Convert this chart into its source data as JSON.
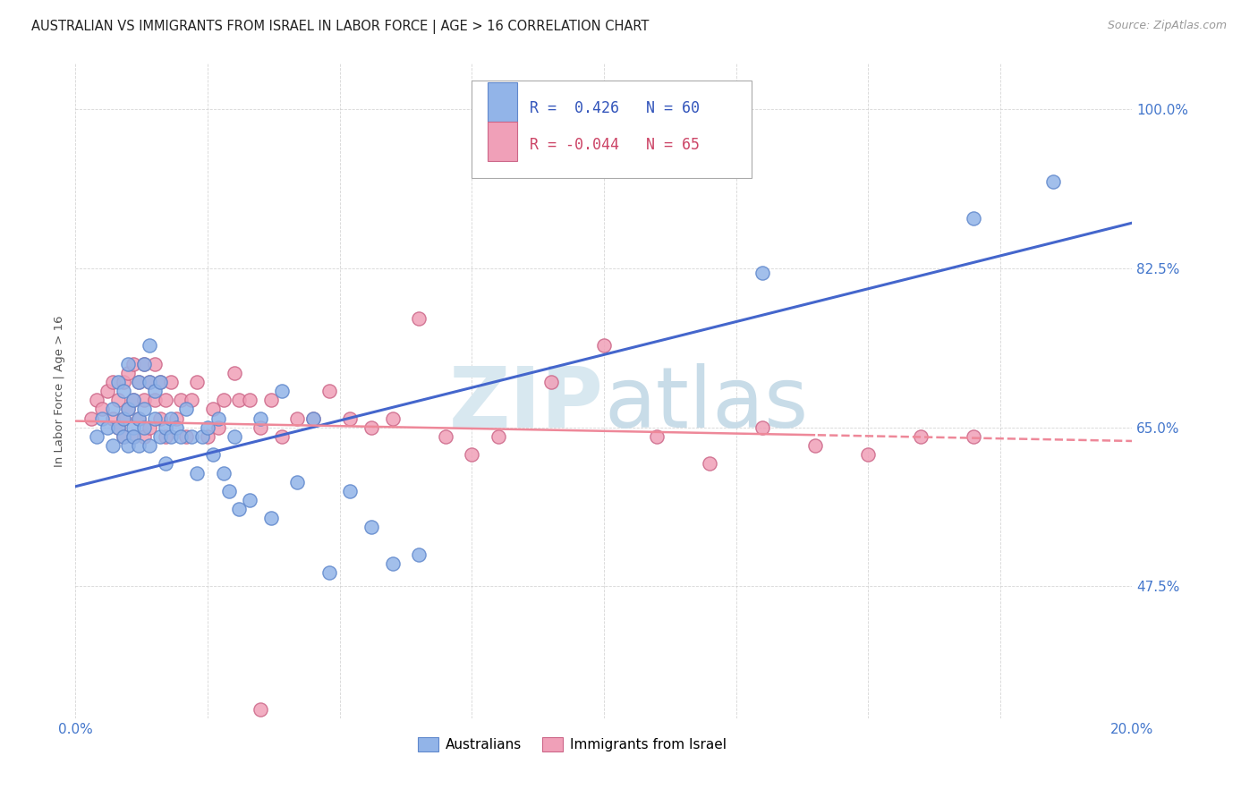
{
  "title": "AUSTRALIAN VS IMMIGRANTS FROM ISRAEL IN LABOR FORCE | AGE > 16 CORRELATION CHART",
  "source": "Source: ZipAtlas.com",
  "ylabel": "In Labor Force | Age > 16",
  "xlim": [
    0.0,
    0.2
  ],
  "ylim": [
    0.33,
    1.05
  ],
  "xtick_vals": [
    0.0,
    0.025,
    0.05,
    0.075,
    0.1,
    0.125,
    0.15,
    0.175,
    0.2
  ],
  "ytick_values": [
    0.475,
    0.65,
    0.825,
    1.0
  ],
  "ytick_labels": [
    "47.5%",
    "65.0%",
    "82.5%",
    "100.0%"
  ],
  "legend_blue_R": "0.426",
  "legend_blue_N": "60",
  "legend_pink_R": "-0.044",
  "legend_pink_N": "65",
  "blue_color": "#92b4e8",
  "blue_edge": "#6088cc",
  "pink_color": "#f0a0b8",
  "pink_edge": "#cc6688",
  "line_blue": "#4466cc",
  "line_pink": "#ee8899",
  "watermark_color": "#d8e8f0",
  "blue_scatter_x": [
    0.004,
    0.005,
    0.006,
    0.007,
    0.007,
    0.008,
    0.008,
    0.009,
    0.009,
    0.009,
    0.01,
    0.01,
    0.01,
    0.011,
    0.011,
    0.011,
    0.012,
    0.012,
    0.012,
    0.013,
    0.013,
    0.013,
    0.014,
    0.014,
    0.014,
    0.015,
    0.015,
    0.016,
    0.016,
    0.017,
    0.017,
    0.018,
    0.018,
    0.019,
    0.02,
    0.021,
    0.022,
    0.023,
    0.024,
    0.025,
    0.026,
    0.027,
    0.028,
    0.029,
    0.03,
    0.031,
    0.033,
    0.035,
    0.037,
    0.039,
    0.042,
    0.045,
    0.048,
    0.052,
    0.056,
    0.06,
    0.065,
    0.13,
    0.17,
    0.185
  ],
  "blue_scatter_y": [
    0.64,
    0.66,
    0.65,
    0.67,
    0.63,
    0.65,
    0.7,
    0.66,
    0.64,
    0.69,
    0.63,
    0.67,
    0.72,
    0.65,
    0.64,
    0.68,
    0.66,
    0.7,
    0.63,
    0.65,
    0.67,
    0.72,
    0.63,
    0.7,
    0.74,
    0.66,
    0.69,
    0.64,
    0.7,
    0.61,
    0.65,
    0.64,
    0.66,
    0.65,
    0.64,
    0.67,
    0.64,
    0.6,
    0.64,
    0.65,
    0.62,
    0.66,
    0.6,
    0.58,
    0.64,
    0.56,
    0.57,
    0.66,
    0.55,
    0.69,
    0.59,
    0.66,
    0.49,
    0.58,
    0.54,
    0.5,
    0.51,
    0.82,
    0.88,
    0.92
  ],
  "pink_scatter_x": [
    0.003,
    0.004,
    0.005,
    0.006,
    0.007,
    0.007,
    0.008,
    0.008,
    0.009,
    0.009,
    0.009,
    0.01,
    0.01,
    0.011,
    0.011,
    0.011,
    0.012,
    0.012,
    0.013,
    0.013,
    0.013,
    0.014,
    0.014,
    0.015,
    0.015,
    0.016,
    0.016,
    0.017,
    0.017,
    0.018,
    0.019,
    0.02,
    0.021,
    0.022,
    0.023,
    0.025,
    0.026,
    0.027,
    0.028,
    0.03,
    0.031,
    0.033,
    0.035,
    0.037,
    0.039,
    0.042,
    0.045,
    0.048,
    0.052,
    0.056,
    0.06,
    0.065,
    0.07,
    0.075,
    0.08,
    0.09,
    0.1,
    0.11,
    0.12,
    0.13,
    0.14,
    0.15,
    0.16,
    0.17,
    0.035
  ],
  "pink_scatter_y": [
    0.66,
    0.68,
    0.67,
    0.69,
    0.66,
    0.7,
    0.65,
    0.68,
    0.66,
    0.7,
    0.64,
    0.67,
    0.71,
    0.64,
    0.68,
    0.72,
    0.66,
    0.7,
    0.64,
    0.68,
    0.72,
    0.65,
    0.7,
    0.68,
    0.72,
    0.66,
    0.7,
    0.64,
    0.68,
    0.7,
    0.66,
    0.68,
    0.64,
    0.68,
    0.7,
    0.64,
    0.67,
    0.65,
    0.68,
    0.71,
    0.68,
    0.68,
    0.65,
    0.68,
    0.64,
    0.66,
    0.66,
    0.69,
    0.66,
    0.65,
    0.66,
    0.77,
    0.64,
    0.62,
    0.64,
    0.7,
    0.74,
    0.64,
    0.61,
    0.65,
    0.63,
    0.62,
    0.64,
    0.64,
    0.34
  ]
}
